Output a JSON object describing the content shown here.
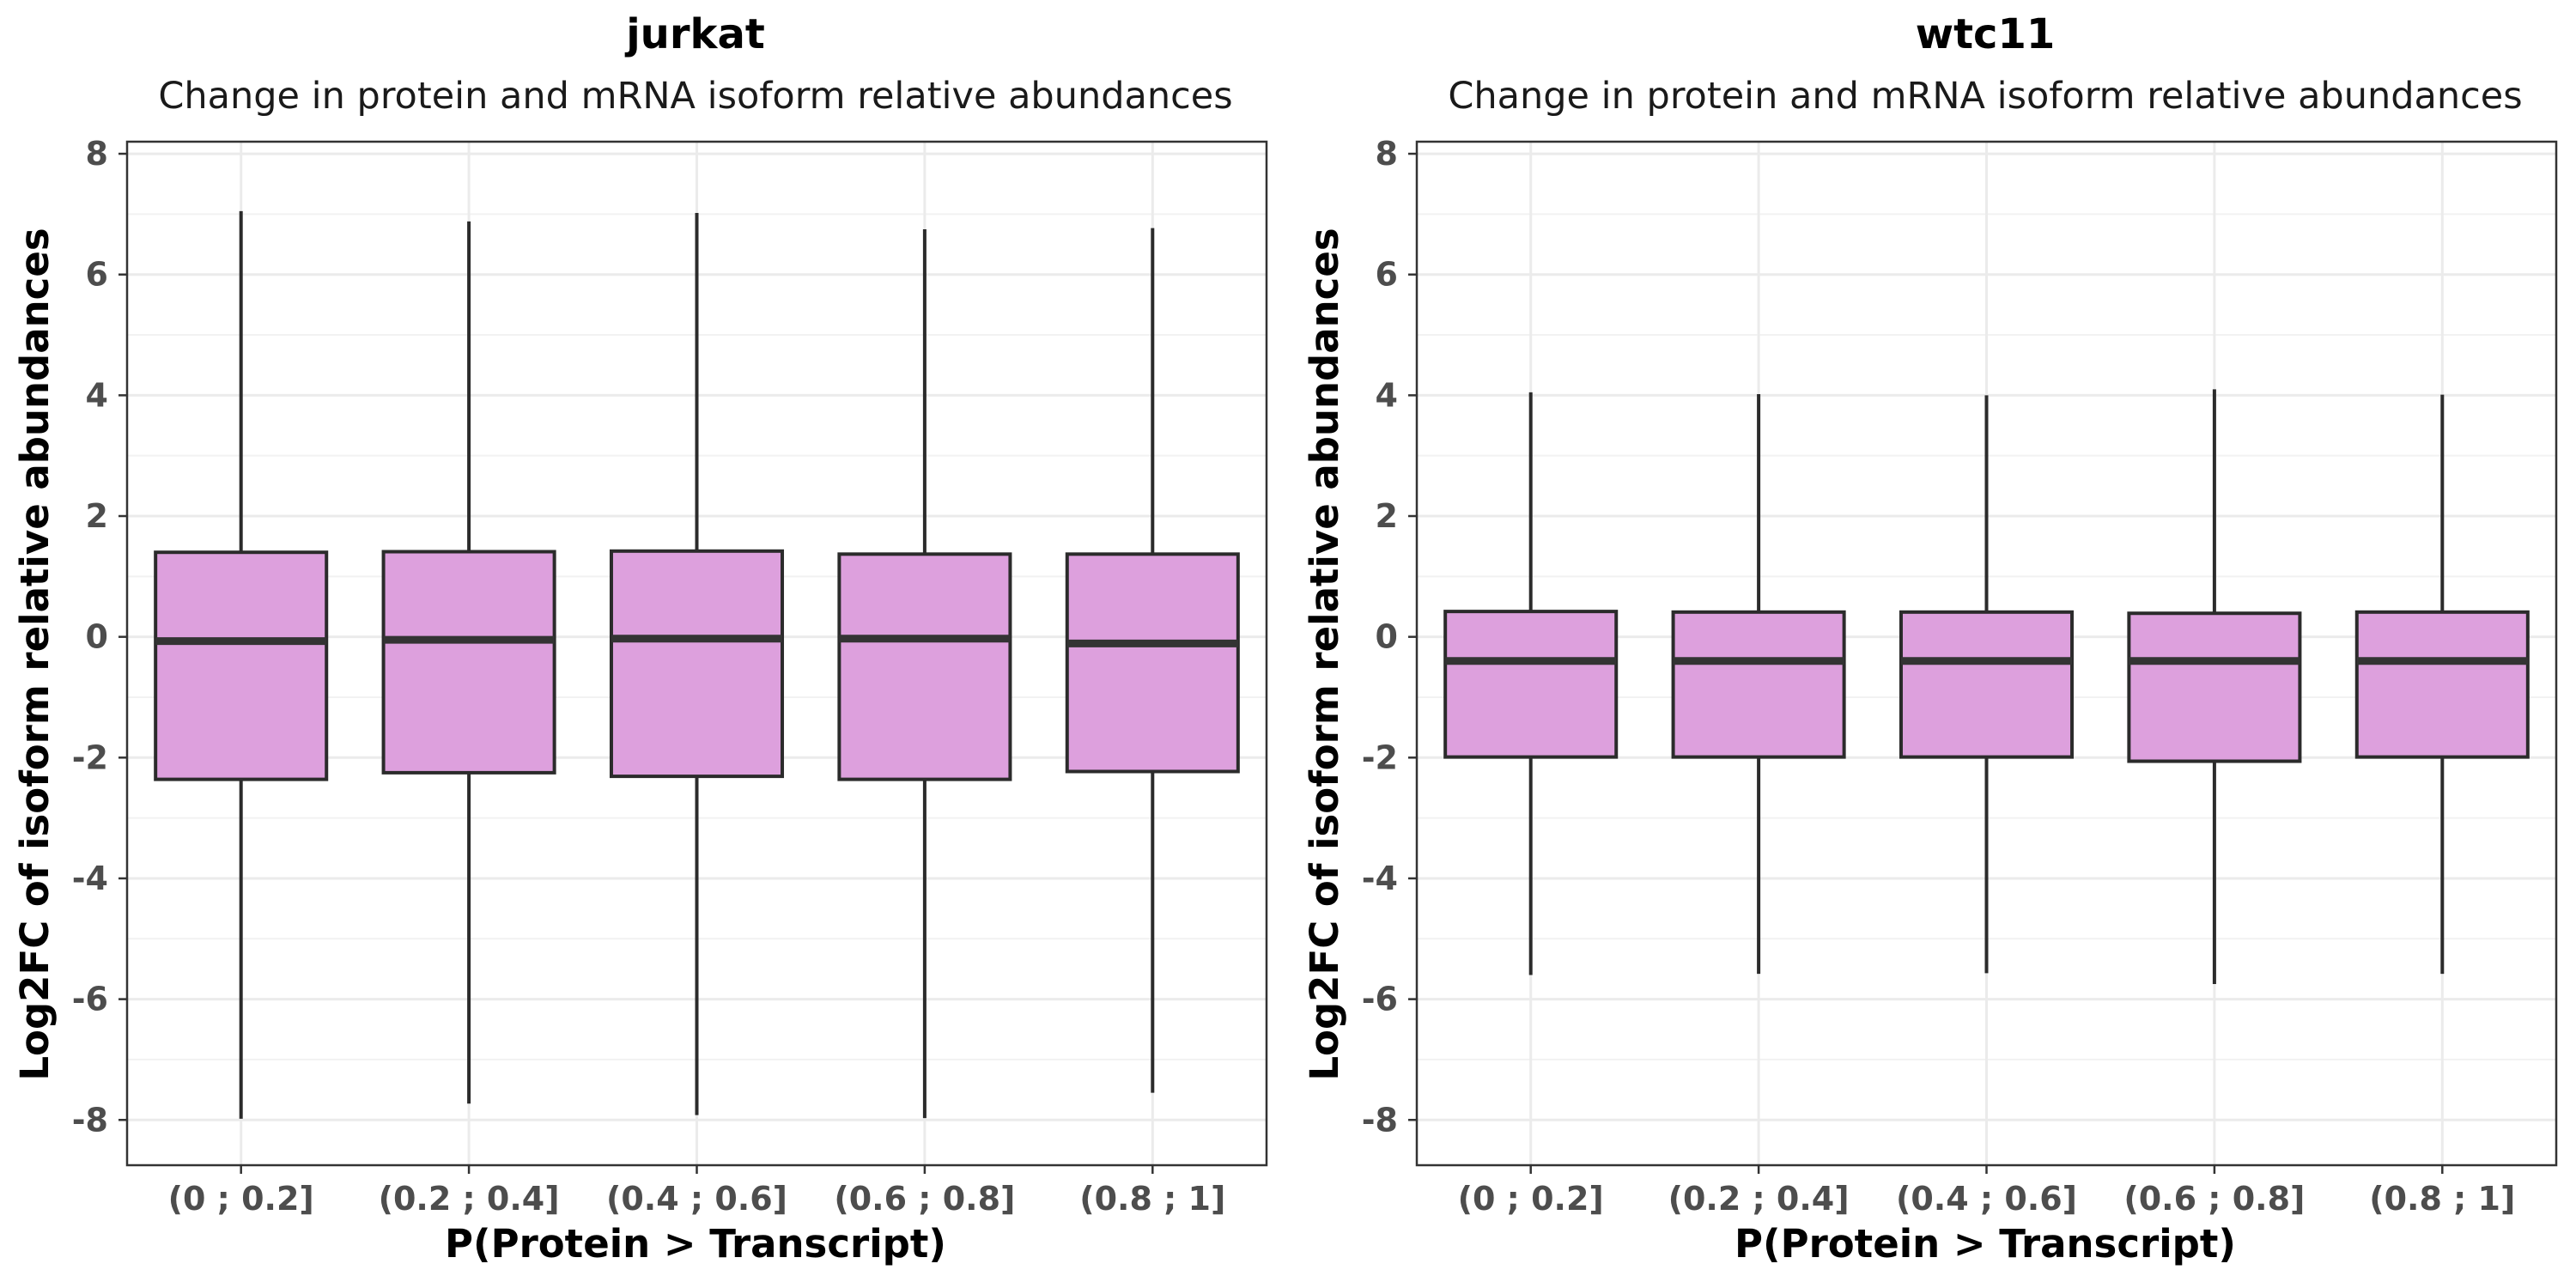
{
  "chart_data": [
    {
      "type": "boxplot",
      "title": "jurkat",
      "subtitle": "Change in protein and mRNA isoform relative abundances",
      "xlabel": "P(Protein > Transcript)",
      "ylabel": "Log2FC of isoform relative abundances",
      "ylim": [
        -8.75,
        8.2
      ],
      "yticks": [
        -8,
        -6,
        -4,
        -2,
        0,
        2,
        4,
        6,
        8
      ],
      "ytick_labels": [
        "-8",
        "-6",
        "-4",
        "-2",
        "0",
        "2",
        "4",
        "6",
        "8"
      ],
      "categories": [
        "(0 ; 0.2]",
        "(0.2 ; 0.4]",
        "(0.4 ; 0.6]",
        "(0.6 ; 0.8]",
        "(0.8 ; 1]"
      ],
      "grid": true,
      "box_color": "#dda0dd",
      "boxes": [
        {
          "whisker_low": -7.98,
          "q1": -2.36,
          "median": -0.07,
          "q3": 1.4,
          "whisker_high": 7.05
        },
        {
          "whisker_low": -7.73,
          "q1": -2.25,
          "median": -0.05,
          "q3": 1.41,
          "whisker_high": 6.88
        },
        {
          "whisker_low": -7.92,
          "q1": -2.31,
          "median": -0.03,
          "q3": 1.42,
          "whisker_high": 7.02
        },
        {
          "whisker_low": -7.97,
          "q1": -2.36,
          "median": -0.03,
          "q3": 1.37,
          "whisker_high": 6.75
        },
        {
          "whisker_low": -7.55,
          "q1": -2.23,
          "median": -0.11,
          "q3": 1.37,
          "whisker_high": 6.77
        }
      ]
    },
    {
      "type": "boxplot",
      "title": "wtc11",
      "subtitle": "Change in protein and mRNA isoform relative abundances",
      "xlabel": "P(Protein > Transcript)",
      "ylabel": "Log2FC of isoform relative abundances",
      "ylim": [
        -8.75,
        8.2
      ],
      "yticks": [
        -8,
        -6,
        -4,
        -2,
        0,
        2,
        4,
        6,
        8
      ],
      "ytick_labels": [
        "-8",
        "-6",
        "-4",
        "-2",
        "0",
        "2",
        "4",
        "6",
        "8"
      ],
      "categories": [
        "(0 ; 0.2]",
        "(0.2 ; 0.4]",
        "(0.4 ; 0.6]",
        "(0.6 ; 0.8]",
        "(0.8 ; 1]"
      ],
      "grid": true,
      "box_color": "#dda0dd",
      "boxes": [
        {
          "whisker_low": -5.6,
          "q1": -1.99,
          "median": -0.4,
          "q3": 0.42,
          "whisker_high": 4.05
        },
        {
          "whisker_low": -5.58,
          "q1": -1.99,
          "median": -0.4,
          "q3": 0.41,
          "whisker_high": 4.02
        },
        {
          "whisker_low": -5.57,
          "q1": -1.99,
          "median": -0.4,
          "q3": 0.41,
          "whisker_high": 4.0
        },
        {
          "whisker_low": -5.75,
          "q1": -2.06,
          "median": -0.4,
          "q3": 0.39,
          "whisker_high": 4.1
        },
        {
          "whisker_low": -5.58,
          "q1": -1.99,
          "median": -0.4,
          "q3": 0.41,
          "whisker_high": 4.01
        }
      ]
    }
  ]
}
